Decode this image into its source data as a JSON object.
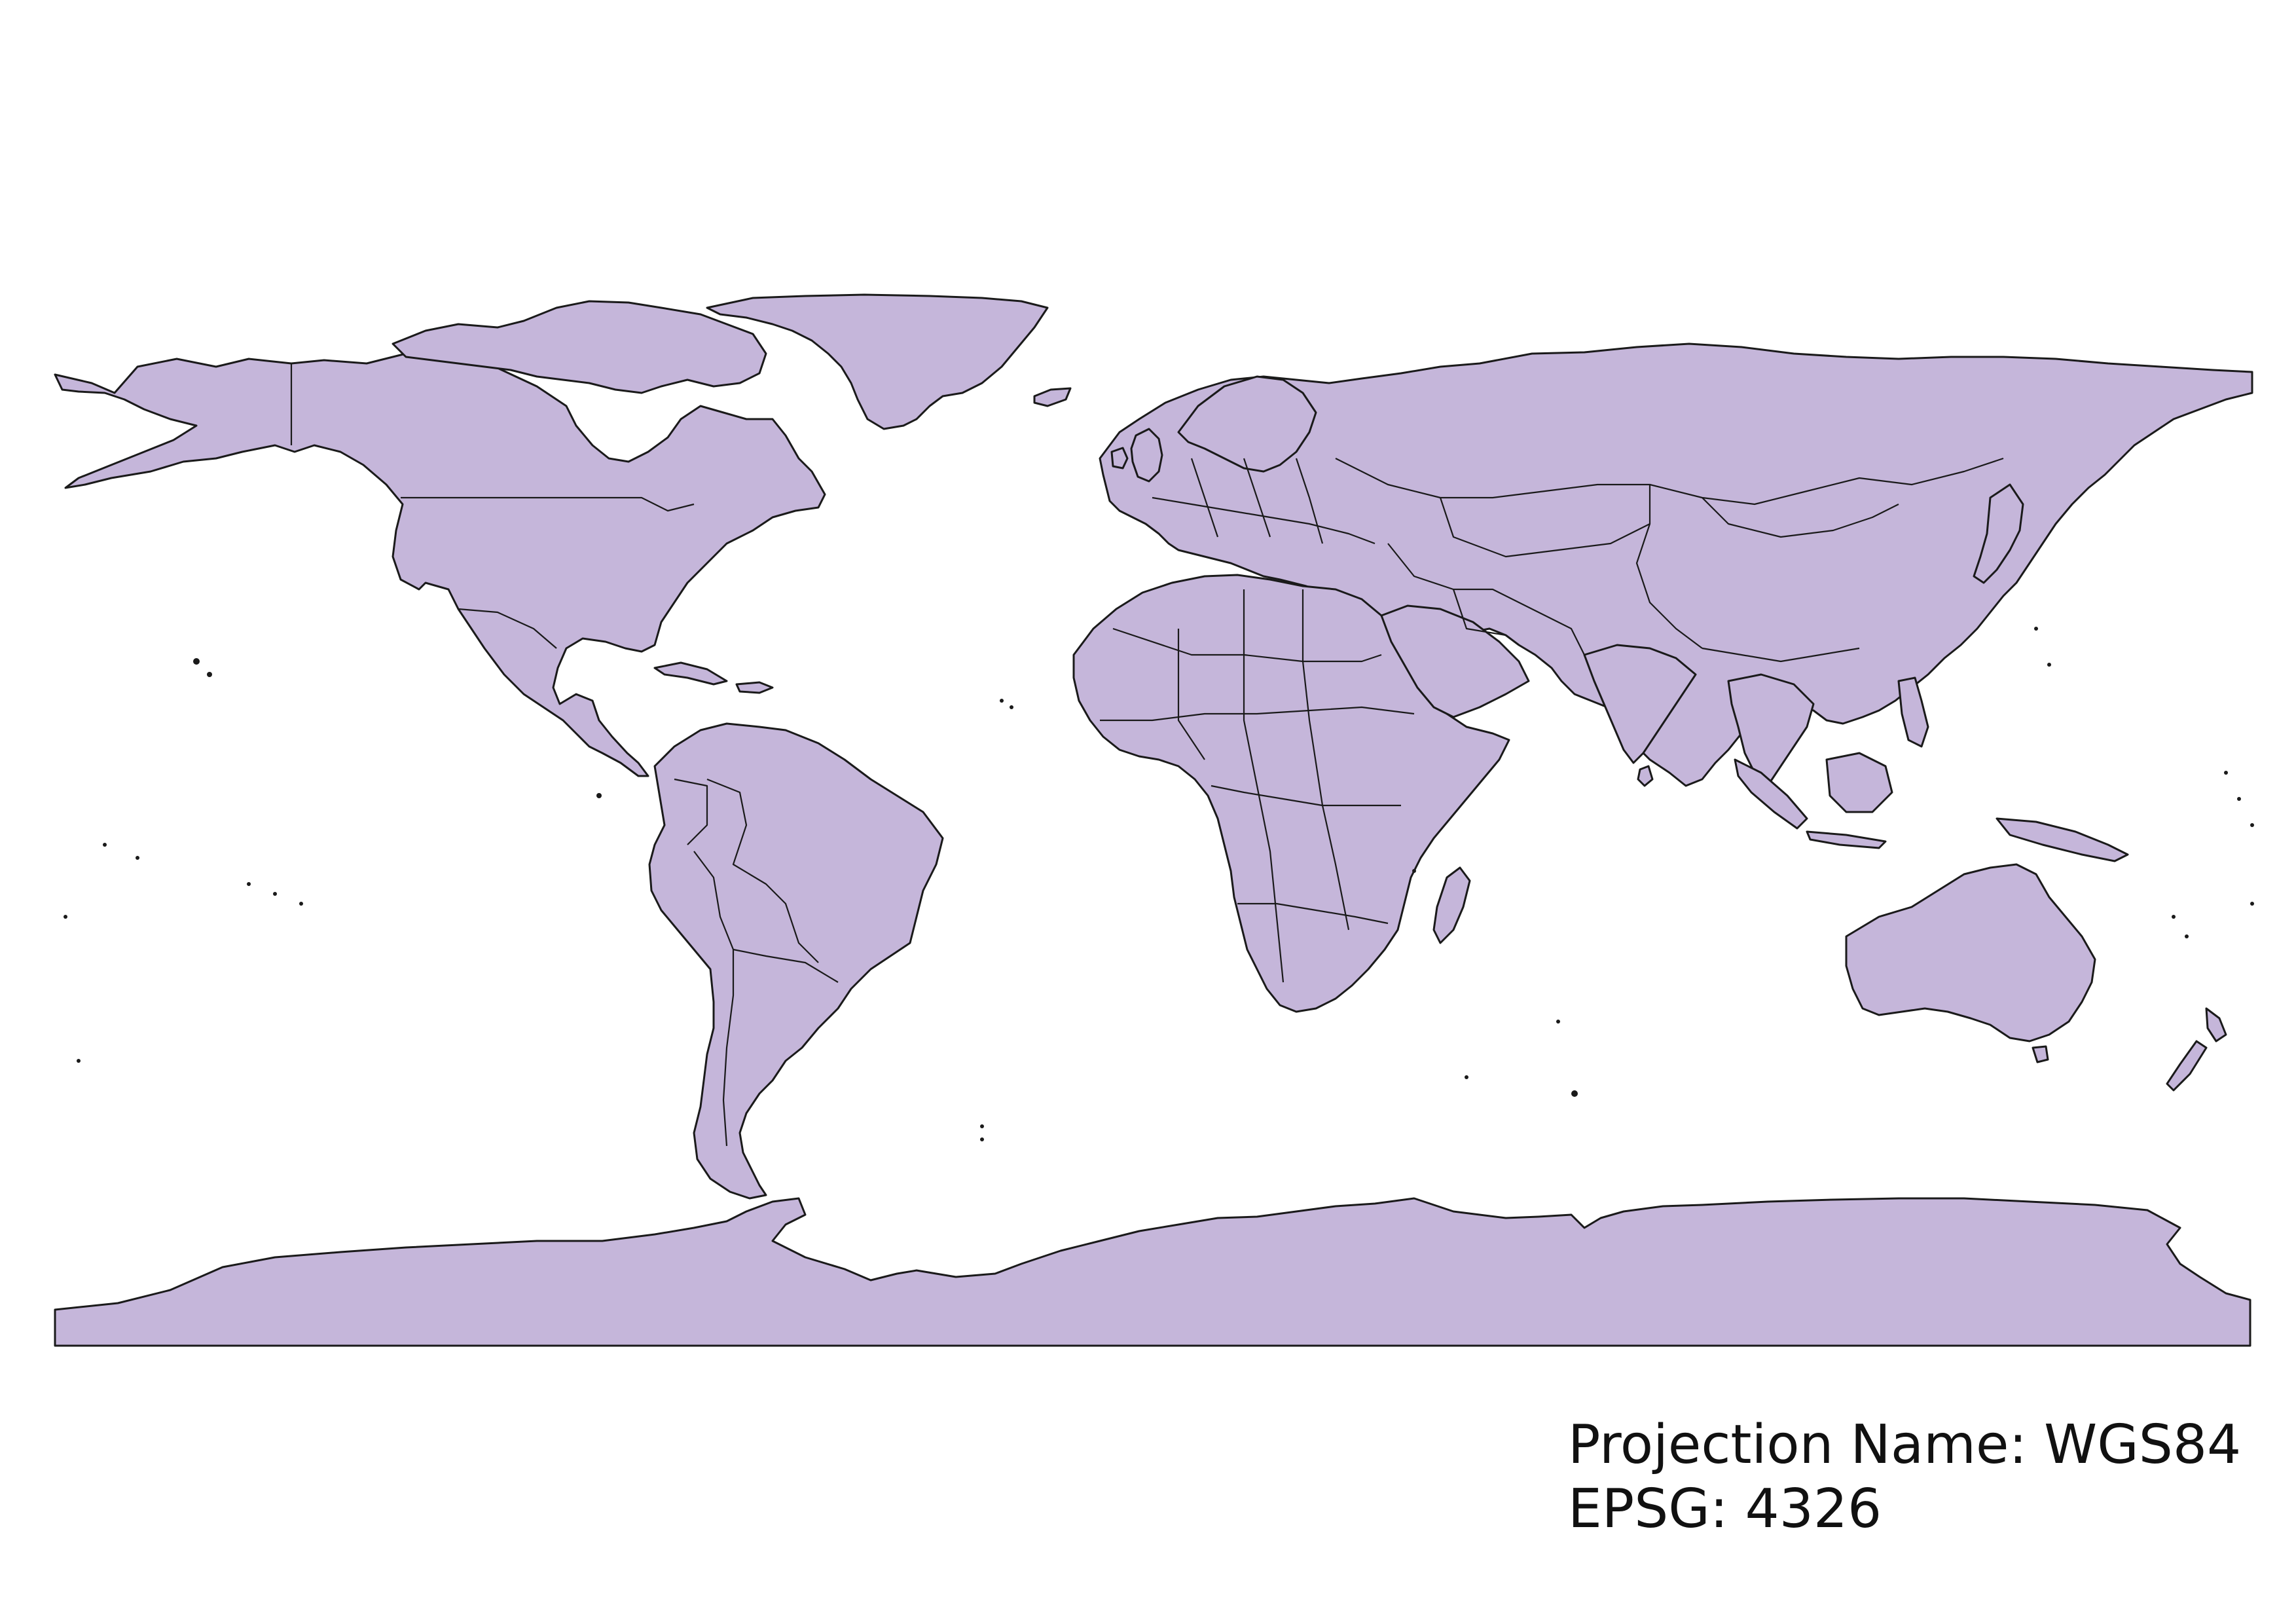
{
  "map": {
    "type": "world-political-outline",
    "projection_display": "equirectangular",
    "extent": {
      "lon": [
        -180,
        180
      ],
      "lat": [
        -90,
        84
      ]
    },
    "colors": {
      "land_fill": "#c5b6da",
      "outline": "#1a1a1a",
      "background": "#ffffff"
    }
  },
  "caption": {
    "projection_line": "Projection Name: WGS84",
    "epsg_line": "EPSG: 4326"
  }
}
